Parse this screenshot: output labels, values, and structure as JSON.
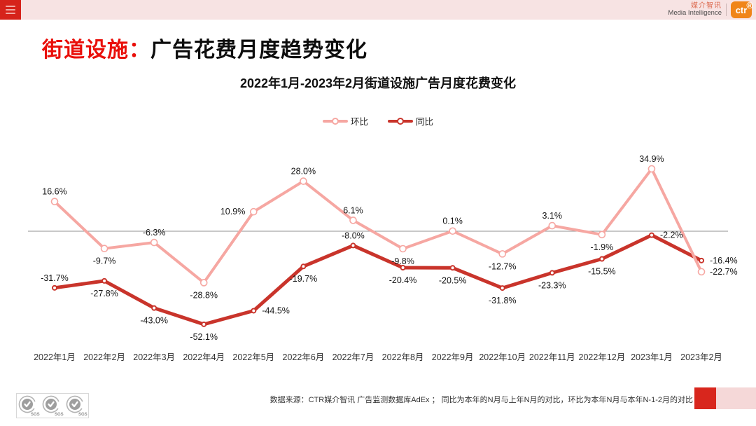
{
  "topbar": {
    "menu_icon": "hamburger-icon",
    "brand": {
      "name_zh": "媒介智讯",
      "name_en": "Media Intelligence",
      "logo_text": "ctr",
      "registered_mark": "®",
      "name_color": "#DC6A4F",
      "logo_bg": "#F08519"
    },
    "bar_color": "#F7E3E3",
    "menu_bg": "#D6231B"
  },
  "title": {
    "highlight": "街道设施：",
    "rest": "广告花费月度趋势变化",
    "highlight_color": "#E90F0A"
  },
  "chart_data": {
    "type": "line",
    "title": "2022年1月-2023年2月街道设施广告月度花费变化",
    "categories": [
      "2022年1月",
      "2022年2月",
      "2022年3月",
      "2022年4月",
      "2022年5月",
      "2022年6月",
      "2022年7月",
      "2022年8月",
      "2022年9月",
      "2022年10月",
      "2022年11月",
      "2022年12月",
      "2023年1月",
      "2023年2月"
    ],
    "series": [
      {
        "name": "环比",
        "color": "#F6A7A2",
        "values": [
          16.6,
          -9.7,
          -6.3,
          -28.8,
          10.9,
          28.0,
          6.1,
          -9.8,
          0.1,
          -12.7,
          3.1,
          -1.9,
          34.9,
          -22.7
        ],
        "label_positions": [
          "above",
          "below",
          "above",
          "below",
          "left",
          "above",
          "above",
          "below",
          "above",
          "below",
          "above",
          "below",
          "above",
          "right"
        ]
      },
      {
        "name": "同比",
        "color": "#C9342B",
        "values": [
          -31.7,
          -27.8,
          -43.0,
          -52.1,
          -44.5,
          -19.7,
          -8.0,
          -20.4,
          -20.5,
          -31.8,
          -23.3,
          -15.5,
          -2.2,
          -16.4
        ],
        "label_positions": [
          "above",
          "below",
          "below",
          "below",
          "right",
          "below",
          "above",
          "below",
          "below",
          "below",
          "below",
          "below",
          "right",
          "right"
        ]
      }
    ],
    "value_suffix": "%",
    "ylim": [
      -60,
      45
    ],
    "zero_line": true,
    "grid": false,
    "legend_position": "top-center"
  },
  "footer": {
    "source_text": "数据来源：CTR媒介智讯 广告监测数据库AdEx ； 同比为本年的N月与上年N月的对比，环比为本年N月与本年N-1-2月的对比",
    "sgs_label": "SGS",
    "accent_red": "#D8261D",
    "accent_pink": "#F5D8D8"
  }
}
